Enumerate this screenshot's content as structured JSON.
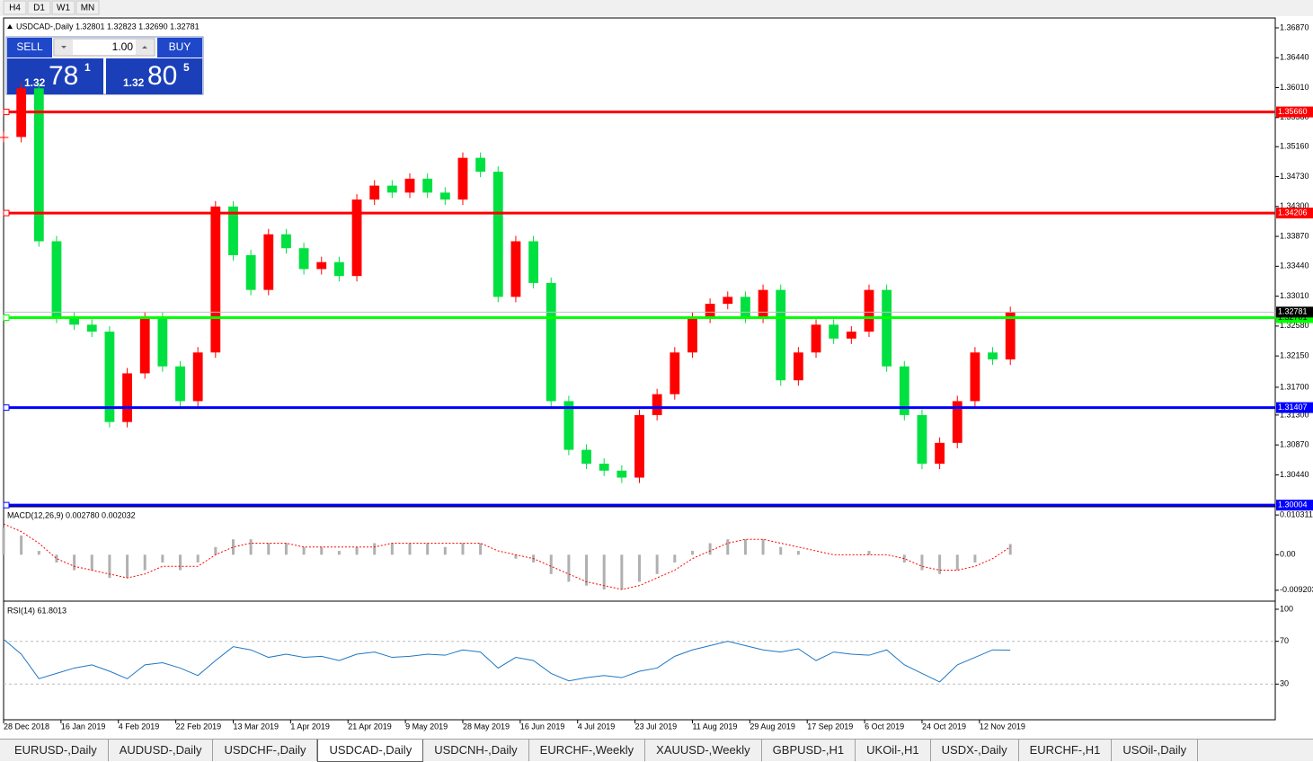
{
  "toolbar": {
    "timeframes": [
      "H4",
      "D1",
      "W1",
      "MN"
    ]
  },
  "trade_panel": {
    "sell": "SELL",
    "buy": "BUY",
    "lots": "1.00",
    "bid_prefix": "1.32",
    "bid_big": "78",
    "bid_small": "1",
    "ask_prefix": "1.32",
    "ask_big": "80",
    "ask_small": "5"
  },
  "chart_data": [
    {
      "type": "candle",
      "title": "USDCAD-,Daily 1.32801 1.32823 1.32690 1.32781",
      "x": [
        0,
        4,
        8,
        12,
        16,
        20,
        24,
        28,
        32,
        36,
        40,
        44,
        48,
        52,
        56,
        60,
        64,
        68,
        72,
        76,
        80,
        84,
        88,
        92,
        96,
        100,
        104,
        108,
        112,
        116,
        120,
        124,
        128,
        132,
        136,
        140,
        144,
        148,
        152,
        156,
        160,
        164,
        168,
        172,
        176,
        180,
        184,
        188,
        192,
        196,
        200,
        204,
        208,
        212,
        216,
        220,
        224,
        228
      ],
      "values": [
        1.353,
        1.36,
        1.338,
        1.327,
        1.326,
        1.325,
        1.312,
        1.319,
        1.327,
        1.32,
        1.315,
        1.322,
        1.343,
        1.336,
        1.331,
        1.339,
        1.337,
        1.334,
        1.335,
        1.333,
        1.344,
        1.346,
        1.345,
        1.347,
        1.345,
        1.344,
        1.35,
        1.348,
        1.33,
        1.338,
        1.332,
        1.315,
        1.308,
        1.306,
        1.305,
        1.304,
        1.313,
        1.316,
        1.322,
        1.327,
        1.329,
        1.33,
        1.327,
        1.331,
        1.318,
        1.322,
        1.326,
        1.324,
        1.325,
        1.331,
        1.32,
        1.313,
        1.306,
        1.309,
        1.315,
        1.322,
        1.321,
        1.32781
      ],
      "up_color": "#ff0000",
      "down_color": "#00e040",
      "xlim": [
        0,
        288
      ],
      "xticks": [
        {
          "value": 0,
          "label": "28 Dec 2018"
        },
        {
          "value": 13,
          "label": "16 Jan 2019"
        },
        {
          "value": 26,
          "label": "4 Feb 2019"
        },
        {
          "value": 39,
          "label": "22 Feb 2019"
        },
        {
          "value": 52,
          "label": "13 Mar 2019"
        },
        {
          "value": 65,
          "label": "1 Apr 2019"
        },
        {
          "value": 78,
          "label": "21 Apr 2019"
        },
        {
          "value": 91,
          "label": "9 May 2019"
        },
        {
          "value": 104,
          "label": "28 May 2019"
        },
        {
          "value": 117,
          "label": "16 Jun 2019"
        },
        {
          "value": 130,
          "label": "4 Jul 2019"
        },
        {
          "value": 143,
          "label": "23 Jul 2019"
        },
        {
          "value": 156,
          "label": "11 Aug 2019"
        },
        {
          "value": 169,
          "label": "29 Aug 2019"
        },
        {
          "value": 182,
          "label": "17 Sep 2019"
        },
        {
          "value": 195,
          "label": "6 Oct 2019"
        },
        {
          "value": 208,
          "label": "24 Oct 2019"
        },
        {
          "value": 221,
          "label": "12 Nov 2019"
        }
      ],
      "ylim": [
        1.29993,
        1.37012
      ],
      "yticks": [
        {
          "value": 1.3687,
          "label": "1.36870"
        },
        {
          "value": 1.3644,
          "label": "1.36440"
        },
        {
          "value": 1.3601,
          "label": "1.36010"
        },
        {
          "value": 1.3558,
          "label": "1.35580"
        },
        {
          "value": 1.3516,
          "label": "1.35160"
        },
        {
          "value": 1.3473,
          "label": "1.34730"
        },
        {
          "value": 1.343,
          "label": "1.34300"
        },
        {
          "value": 1.3387,
          "label": "1.33870"
        },
        {
          "value": 1.3344,
          "label": "1.33440"
        },
        {
          "value": 1.3301,
          "label": "1.33010"
        },
        {
          "value": 1.3258,
          "label": "1.32580"
        },
        {
          "value": 1.3215,
          "label": "1.32150"
        },
        {
          "value": 1.317,
          "label": "1.31700"
        },
        {
          "value": 1.313,
          "label": "1.31300"
        },
        {
          "value": 1.3087,
          "label": "1.30870"
        },
        {
          "value": 1.3044,
          "label": "1.30440"
        }
      ],
      "levels": [
        {
          "value": 1.3566,
          "label": "1.35660",
          "color": "#ff0000"
        },
        {
          "value": 1.34206,
          "label": "1.34206",
          "color": "#ff0000"
        },
        {
          "value": 1.32701,
          "label": "1.32701",
          "color": "#00ff00"
        },
        {
          "value": 1.31407,
          "label": "1.31407",
          "color": "#0000ff"
        },
        {
          "value": 1.30004,
          "label": "1.30004",
          "color": "#0000ff"
        }
      ],
      "current": {
        "value": 1.32781,
        "label": "1.32781"
      }
    },
    {
      "type": "macd",
      "title": "MACD(12,26,9) 0.002780 0.002032",
      "x": [
        0,
        4,
        8,
        12,
        16,
        20,
        24,
        28,
        32,
        36,
        40,
        44,
        48,
        52,
        56,
        60,
        64,
        68,
        72,
        76,
        80,
        84,
        88,
        92,
        96,
        100,
        104,
        108,
        112,
        116,
        120,
        124,
        128,
        132,
        136,
        140,
        144,
        148,
        152,
        156,
        160,
        164,
        168,
        172,
        176,
        180,
        184,
        188,
        192,
        196,
        200,
        204,
        208,
        212,
        216,
        220,
        224,
        228
      ],
      "xlim": [
        0,
        288
      ],
      "series": [
        {
          "color": "#b0b0b0",
          "values": [
            0.007,
            0.005,
            0.001,
            -0.002,
            -0.004,
            -0.004,
            -0.006,
            -0.006,
            -0.004,
            -0.002,
            -0.004,
            -0.002,
            0.002,
            0.004,
            0.004,
            0.003,
            0.003,
            0.002,
            0.002,
            0.001,
            0.002,
            0.003,
            0.003,
            0.003,
            0.003,
            0.002,
            0.003,
            0.003,
            0.0,
            -0.001,
            -0.002,
            -0.005,
            -0.007,
            -0.008,
            -0.009,
            -0.009,
            -0.007,
            -0.005,
            -0.002,
            0.001,
            0.003,
            0.004,
            0.004,
            0.004,
            0.002,
            0.001,
            0.0,
            0.0,
            0.0,
            0.001,
            0.0,
            -0.002,
            -0.004,
            -0.005,
            -0.004,
            -0.002,
            0.0,
            0.00278
          ]
        },
        {
          "color": "#ff0000",
          "values": [
            0.008,
            0.006,
            0.003,
            -0.001,
            -0.003,
            -0.004,
            -0.005,
            -0.006,
            -0.005,
            -0.003,
            -0.003,
            -0.003,
            0.0,
            0.002,
            0.003,
            0.003,
            0.003,
            0.002,
            0.002,
            0.002,
            0.002,
            0.002,
            0.003,
            0.003,
            0.003,
            0.003,
            0.003,
            0.003,
            0.001,
            0.0,
            -0.001,
            -0.003,
            -0.005,
            -0.007,
            -0.008,
            -0.009,
            -0.008,
            -0.006,
            -0.004,
            -0.001,
            0.001,
            0.003,
            0.004,
            0.004,
            0.003,
            0.002,
            0.001,
            0.0,
            0.0,
            0.0,
            0.0,
            -0.001,
            -0.003,
            -0.004,
            -0.004,
            -0.003,
            -0.001,
            0.002032
          ]
        }
      ],
      "ylim": [
        -0.0118,
        0.0122
      ],
      "yticks": [
        0.010311,
        {
          "value": 0,
          "label": "0.00"
        },
        -0.009203
      ]
    },
    {
      "type": "line",
      "title": "RSI(14) 61.8013",
      "x": [
        0,
        4,
        8,
        12,
        16,
        20,
        24,
        28,
        32,
        36,
        40,
        44,
        48,
        52,
        56,
        60,
        64,
        68,
        72,
        76,
        80,
        84,
        88,
        92,
        96,
        100,
        104,
        108,
        112,
        116,
        120,
        124,
        128,
        132,
        136,
        140,
        144,
        148,
        152,
        156,
        160,
        164,
        168,
        172,
        176,
        180,
        184,
        188,
        192,
        196,
        200,
        204,
        208,
        212,
        216,
        220,
        224,
        228
      ],
      "xlim": [
        0,
        288
      ],
      "color": "#1f77c4",
      "values": [
        72,
        58,
        35,
        40,
        45,
        48,
        42,
        35,
        48,
        50,
        45,
        38,
        52,
        65,
        62,
        55,
        58,
        55,
        56,
        52,
        58,
        60,
        55,
        56,
        58,
        57,
        62,
        60,
        45,
        55,
        52,
        40,
        33,
        36,
        38,
        36,
        42,
        45,
        56,
        62,
        66,
        70,
        66,
        62,
        60,
        63,
        52,
        60,
        58,
        57,
        62,
        48,
        40,
        32,
        48,
        55,
        62,
        61.8013
      ],
      "ylim": [
        0,
        100
      ],
      "yticks": [
        100,
        70,
        30
      ]
    }
  ],
  "tabs": [
    "EURUSD-,Daily",
    "AUDUSD-,Daily",
    "USDCHF-,Daily",
    "USDCAD-,Daily",
    "USDCNH-,Daily",
    "EURCHF-,Weekly",
    "XAUUSD-,Weekly",
    "GBPUSD-,H1",
    "UKOil-,H1",
    "USDX-,Daily",
    "EURCHF-,H1",
    "USOil-,Daily"
  ],
  "active_tab": 3
}
